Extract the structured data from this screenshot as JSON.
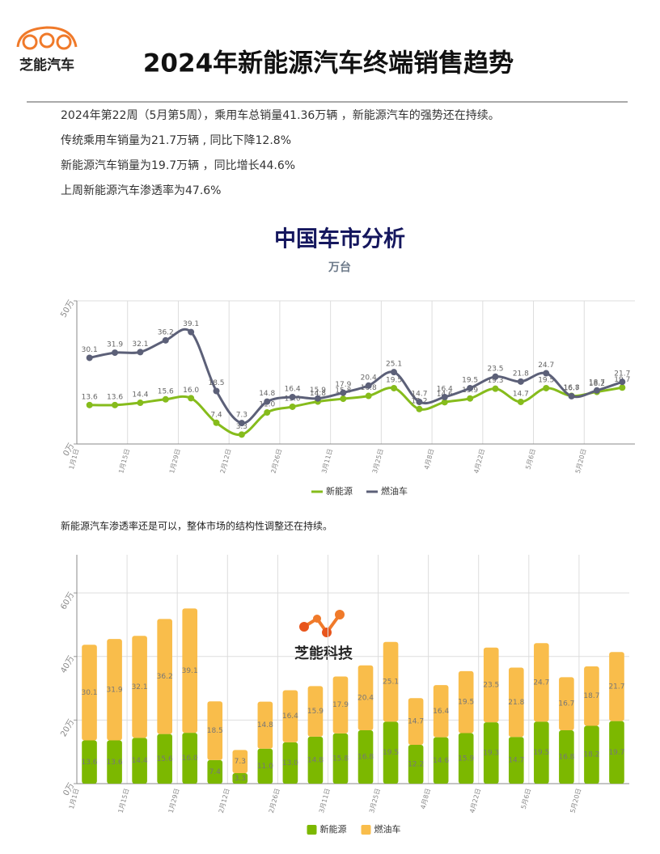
{
  "header": {
    "logo_text": "芝能汽车",
    "title": "2024年新能源汽车终端销售趋势"
  },
  "intro": [
    "2024年第22周（5月第5周），乘用车总销量41.36万辆 ，新能源汽车的强势还在持续。",
    "传统乘用车销量为21.7万辆 , 同比下降12.8%",
    "新能源汽车销量为19.7万辆 ，同比增长44.6%",
    "上周新能源汽车渗透率为47.6%"
  ],
  "chart_data": [
    {
      "type": "line",
      "title": "中国车市分析",
      "subtitle": "万台",
      "categories": [
        "1月1日",
        null,
        "1月15日",
        null,
        "1月29日",
        null,
        "2月12日",
        null,
        "2月26日",
        null,
        "3月11日",
        null,
        "3月25日",
        null,
        "4月8日",
        null,
        "4月22日",
        null,
        "5月6日",
        null,
        "5月20日",
        null
      ],
      "series": [
        {
          "name": "新能源",
          "color": "#86bc1c",
          "values": [
            13.6,
            13.6,
            14.4,
            15.6,
            16.0,
            7.4,
            3.3,
            11.0,
            13.0,
            14.8,
            15.8,
            16.8,
            19.5,
            12.2,
            14.6,
            15.9,
            19.3,
            14.7,
            19.5,
            16.8,
            18.2,
            19.7
          ],
          "value_labels": [
            "13.6",
            "13.6",
            "14.4",
            "15.6",
            "16.0",
            "7.4",
            "3.3",
            "11.0",
            "13.0",
            "14.8",
            "15.8",
            "16.8",
            "19.5",
            "12.2",
            "14.6",
            "15.9",
            "19.3",
            "14.7",
            "19.5",
            "16.8",
            "18.2",
            "19.7"
          ]
        },
        {
          "name": "燃油车",
          "color": "#5c6078",
          "values": [
            30.1,
            31.9,
            32.1,
            36.2,
            39.1,
            18.5,
            7.3,
            14.8,
            16.4,
            15.9,
            17.9,
            20.4,
            25.1,
            14.7,
            16.4,
            19.5,
            23.5,
            21.8,
            24.7,
            16.7,
            18.7,
            21.7
          ]
        }
      ],
      "ylim": [
        0,
        50
      ],
      "yticks": [
        {
          "value": 0,
          "label": "0万"
        },
        {
          "value": 50,
          "label": "50万"
        }
      ],
      "grid": true
    },
    {
      "type": "bar",
      "stacked": true,
      "categories": [
        "1月1日",
        null,
        "1月15日",
        null,
        "1月29日",
        null,
        "2月12日",
        null,
        "2月26日",
        null,
        "3月11日",
        null,
        "3月25日",
        null,
        "4月8日",
        null,
        "4月22日",
        null,
        "5月6日",
        null,
        "5月20日",
        null
      ],
      "series": [
        {
          "name": "新能源",
          "color": "#7cb800",
          "values": [
            13.6,
            13.6,
            14.4,
            15.6,
            16.0,
            7.4,
            3.3,
            11.0,
            13.0,
            14.8,
            15.8,
            16.8,
            19.5,
            12.2,
            14.6,
            15.9,
            19.3,
            14.7,
            19.5,
            16.8,
            18.2,
            19.7
          ],
          "value_labels": [
            "13.6",
            "13.6",
            "14.4",
            "15.6",
            "16.0",
            "7.4",
            "3.3",
            "11.0",
            "13.0",
            "14.8",
            "15.8",
            "16.8",
            "19.5",
            "12.2",
            "14.6",
            "15.9",
            "19.3",
            "14.7",
            "19.5",
            "16.8",
            "18.2",
            "19.7"
          ]
        },
        {
          "name": "燃油车",
          "color": "#f9bd4b",
          "values": [
            30.1,
            31.9,
            32.1,
            36.2,
            39.1,
            18.5,
            7.3,
            14.8,
            16.4,
            15.9,
            17.9,
            20.4,
            25.1,
            14.7,
            16.4,
            19.5,
            23.5,
            21.8,
            24.7,
            16.7,
            18.7,
            21.7
          ]
        }
      ],
      "ylim": [
        0,
        72
      ],
      "yticks": [
        {
          "value": 0,
          "label": "0万"
        },
        {
          "value": 20,
          "label": "20万"
        },
        {
          "value": 40,
          "label": "40万"
        },
        {
          "value": 60,
          "label": "60万"
        }
      ],
      "grid": true
    }
  ],
  "note": "新能源汽车渗透率还是可以，整体市场的结构性调整还在持续。",
  "watermark": "芝能科技"
}
